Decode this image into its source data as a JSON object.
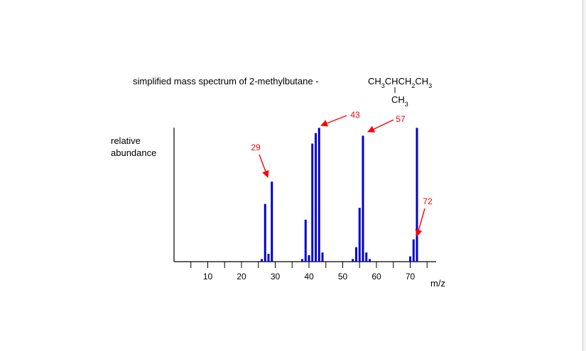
{
  "chart_data": {
    "type": "bar",
    "title": "simplified mass spectrum of 2-methylbutane  -",
    "formula": {
      "main": [
        {
          "text": "CH",
          "sub": false
        },
        {
          "text": "3",
          "sub": true
        },
        {
          "text": "CHCH",
          "sub": false
        },
        {
          "text": "2",
          "sub": true
        },
        {
          "text": "CH",
          "sub": false
        },
        {
          "text": "3",
          "sub": true
        }
      ],
      "branch": [
        {
          "text": "CH",
          "sub": false
        },
        {
          "text": "3",
          "sub": true
        }
      ]
    },
    "ylabel": [
      "relative",
      "abundance"
    ],
    "xlabel": "m/z",
    "xlim": [
      0,
      74
    ],
    "ylim": [
      0,
      100
    ],
    "x_ticks": [
      10,
      20,
      30,
      40,
      50,
      60,
      70
    ],
    "grid": false,
    "bar_color": "#0000cc",
    "annotation_color": "#ff0000",
    "x": [
      26,
      27,
      28,
      29,
      38,
      39,
      40,
      41,
      42,
      43,
      44,
      53,
      54,
      55,
      56,
      57,
      58,
      70,
      71,
      72
    ],
    "values": [
      2,
      44,
      6,
      61,
      2,
      32,
      5,
      90,
      98,
      102,
      7,
      2,
      11,
      41,
      96,
      7,
      2,
      4,
      17,
      102
    ],
    "annotations": [
      {
        "label": "29",
        "x": 29
      },
      {
        "label": "43",
        "x": 43
      },
      {
        "label": "57",
        "x": 57
      },
      {
        "label": "72",
        "x": 72
      }
    ]
  }
}
